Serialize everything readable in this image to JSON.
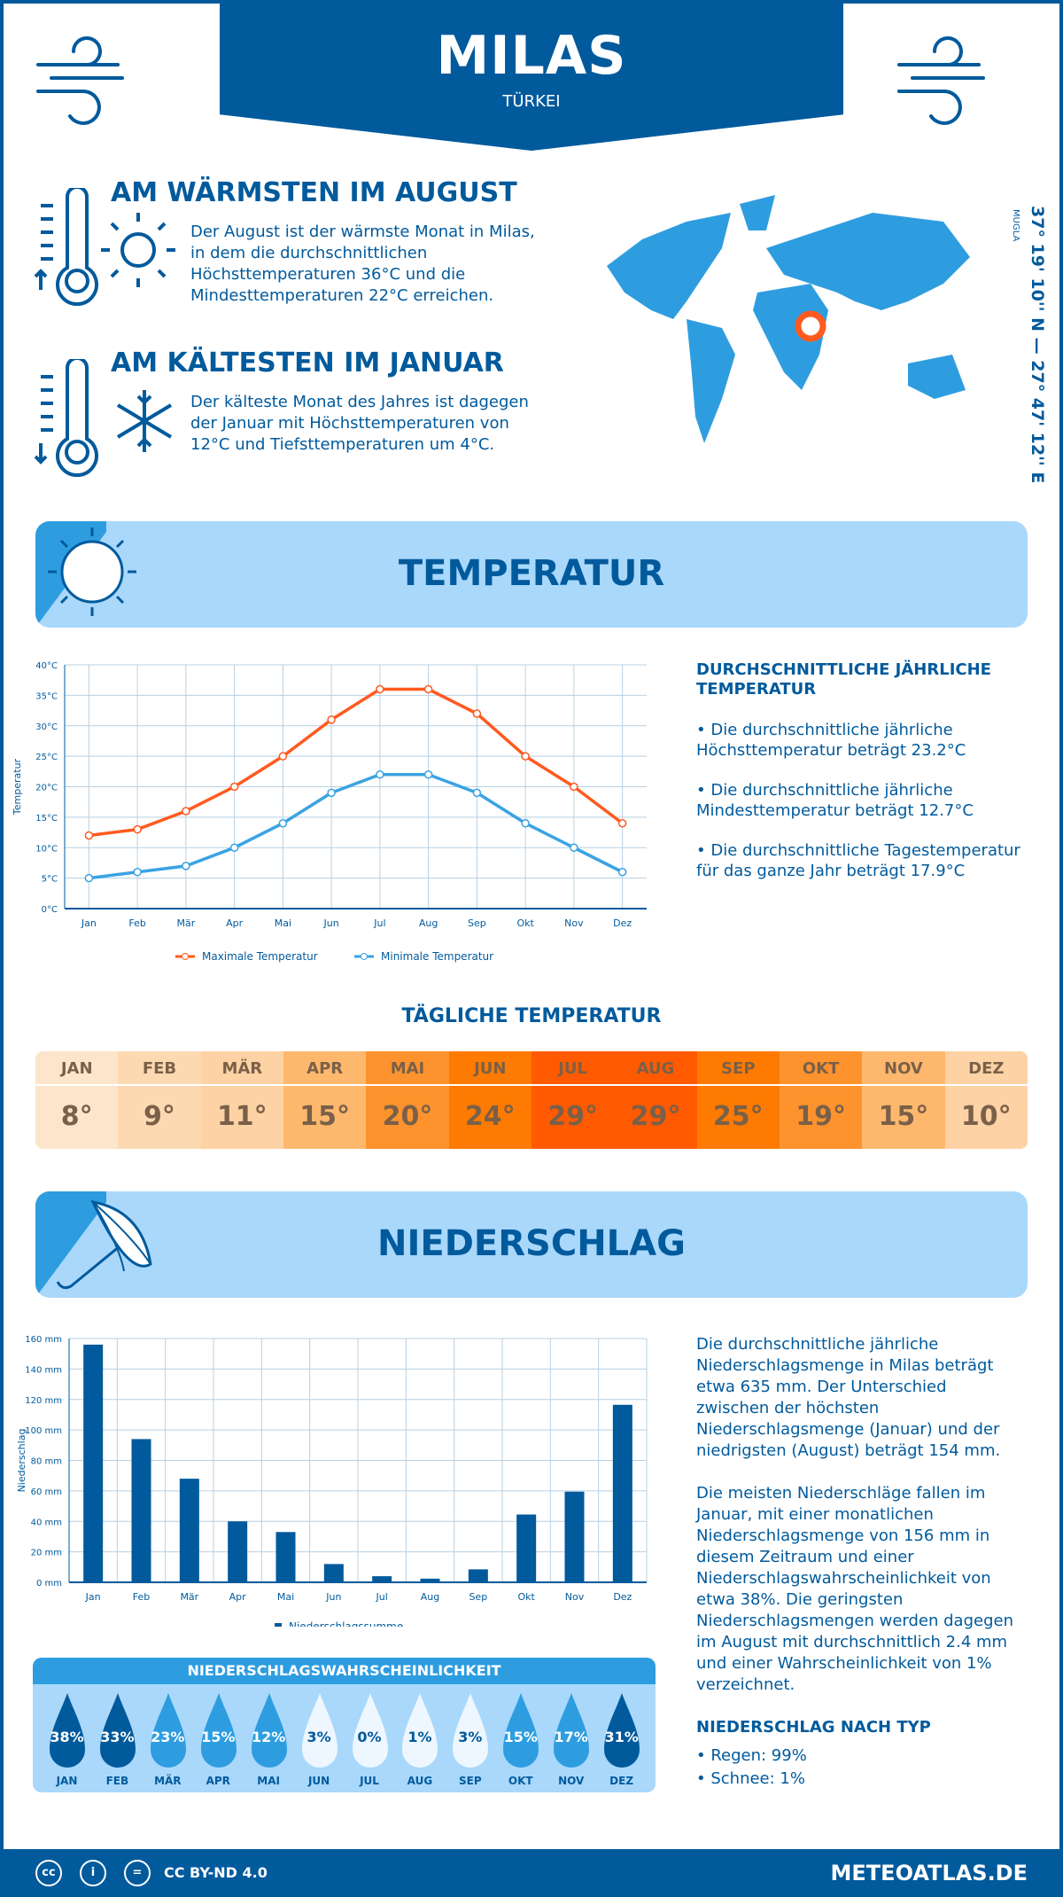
{
  "header": {
    "city": "MILAS",
    "country": "TÜRKEI",
    "region": "MUGLA",
    "coordinates": "37° 19' 10'' N — 27° 47' 12'' E"
  },
  "warmest": {
    "title": "AM WÄRMSTEN IM AUGUST",
    "text": "Der August ist der wärmste Monat in Milas, in dem die durchschnittlichen Höchsttemperaturen 36°C und die Mindesttemperaturen 22°C erreichen."
  },
  "coldest": {
    "title": "AM KÄLTESTEN IM JANUAR",
    "text": "Der kälteste Monat des Jahres ist dagegen der Januar mit Höchsttemperaturen von 12°C und Tiefsttemperaturen um 4°C."
  },
  "temperature": {
    "section_title": "TEMPERATUR",
    "summary_title": "DURCHSCHNITTLICHE JÄHRLICHE TEMPERATUR",
    "bullets": [
      "• Die durchschnittliche jährliche Höchsttemperatur beträgt 23.2°C",
      "• Die durchschnittliche jährliche Mindesttemperatur beträgt 12.7°C",
      "• Die durchschnittliche Tagestemperatur für das ganze Jahr beträgt 17.9°C"
    ],
    "daily_title": "TÄGLICHE TEMPERATUR",
    "daily": [
      {
        "m": "JAN",
        "v": "8°",
        "c": "#fde5cc"
      },
      {
        "m": "FEB",
        "v": "9°",
        "c": "#fdd9b2"
      },
      {
        "m": "MÄR",
        "v": "11°",
        "c": "#fdd2a4"
      },
      {
        "m": "APR",
        "v": "15°",
        "c": "#feb86e"
      },
      {
        "m": "MAI",
        "v": "20°",
        "c": "#fe932d"
      },
      {
        "m": "JUN",
        "v": "24°",
        "c": "#ff7a00"
      },
      {
        "m": "JUL",
        "v": "29°",
        "c": "#ff5a00"
      },
      {
        "m": "AUG",
        "v": "29°",
        "c": "#ff5a00"
      },
      {
        "m": "SEP",
        "v": "25°",
        "c": "#ff7a00"
      },
      {
        "m": "OKT",
        "v": "19°",
        "c": "#fe932d"
      },
      {
        "m": "NOV",
        "v": "15°",
        "c": "#feb86e"
      },
      {
        "m": "DEZ",
        "v": "10°",
        "c": "#fdd2a4"
      }
    ]
  },
  "precipitation": {
    "section_title": "NIEDERSCHLAG",
    "text1": "Die durchschnittliche jährliche Niederschlagsmenge in Milas beträgt etwa 635 mm. Der Unterschied zwischen der höchsten Niederschlagsmenge (Januar) und der niedrigsten (August) beträgt 154 mm.",
    "text2": "Die meisten Niederschläge fallen im Januar, mit einer monatlichen Niederschlagsmenge von 156 mm in diesem Zeitraum und einer Niederschlagswahrscheinlichkeit von etwa 38%. Die geringsten Niederschlagsmengen werden dagegen im August mit durchschnittlich 2.4 mm und einer Wahrscheinlichkeit von 1% verzeichnet.",
    "type_title": "NIEDERSCHLAG NACH TYP",
    "types": [
      "• Regen: 99%",
      "• Schnee: 1%"
    ],
    "prob_title": "NIEDERSCHLAGSWAHRSCHEINLICHKEIT",
    "prob": [
      {
        "m": "JAN",
        "v": "38%",
        "c": "#005a9c",
        "t": "#fff"
      },
      {
        "m": "FEB",
        "v": "33%",
        "c": "#005a9c",
        "t": "#fff"
      },
      {
        "m": "MÄR",
        "v": "23%",
        "c": "#2e9de0",
        "t": "#fff"
      },
      {
        "m": "APR",
        "v": "15%",
        "c": "#2e9de0",
        "t": "#fff"
      },
      {
        "m": "MAI",
        "v": "12%",
        "c": "#2e9de0",
        "t": "#fff"
      },
      {
        "m": "JUN",
        "v": "3%",
        "c": "#eef7ff",
        "t": "#005a9c"
      },
      {
        "m": "JUL",
        "v": "0%",
        "c": "#eef7ff",
        "t": "#005a9c"
      },
      {
        "m": "AUG",
        "v": "1%",
        "c": "#eef7ff",
        "t": "#005a9c"
      },
      {
        "m": "SEP",
        "v": "3%",
        "c": "#eef7ff",
        "t": "#005a9c"
      },
      {
        "m": "OKT",
        "v": "15%",
        "c": "#2e9de0",
        "t": "#fff"
      },
      {
        "m": "NOV",
        "v": "17%",
        "c": "#2e9de0",
        "t": "#fff"
      },
      {
        "m": "DEZ",
        "v": "31%",
        "c": "#005a9c",
        "t": "#fff"
      }
    ]
  },
  "chart_data": [
    {
      "type": "line",
      "categories": [
        "Jan",
        "Feb",
        "Mär",
        "Apr",
        "Mai",
        "Jun",
        "Jul",
        "Aug",
        "Sep",
        "Okt",
        "Nov",
        "Dez"
      ],
      "ylabel": "Temperatur",
      "ylim": [
        0,
        40
      ],
      "yticks": [
        "0°C",
        "5°C",
        "10°C",
        "15°C",
        "20°C",
        "25°C",
        "30°C",
        "35°C",
        "40°C"
      ],
      "grid": true,
      "legend": "bottom",
      "series": [
        {
          "name": "Maximale Temperatur",
          "color": "#ff5a1f",
          "values": [
            12,
            13,
            16,
            20,
            25,
            31,
            36,
            36,
            32,
            25,
            20,
            14
          ]
        },
        {
          "name": "Minimale Temperatur",
          "color": "#3aa3e3",
          "values": [
            5,
            6,
            7,
            10,
            14,
            19,
            22,
            22,
            19,
            14,
            10,
            6
          ]
        }
      ]
    },
    {
      "type": "bar",
      "categories": [
        "Jan",
        "Feb",
        "Mär",
        "Apr",
        "Mai",
        "Jun",
        "Jul",
        "Aug",
        "Sep",
        "Okt",
        "Nov",
        "Dez"
      ],
      "ylabel": "Niederschlag",
      "ylim": [
        0,
        160
      ],
      "yticks": [
        "0 mm",
        "20 mm",
        "40 mm",
        "60 mm",
        "80 mm",
        "100 mm",
        "120 mm",
        "140 mm",
        "160 mm"
      ],
      "grid": true,
      "legend": "bottom",
      "series": [
        {
          "name": "Niederschlagssumme",
          "color": "#005a9c",
          "values": [
            156,
            94,
            68,
            40,
            33,
            12,
            4,
            2.4,
            8.5,
            44.5,
            59.5,
            116.5
          ]
        }
      ]
    }
  ],
  "footer": {
    "license": "CC BY-ND 4.0",
    "site": "METEOATLAS.DE",
    "icons": [
      "cc-icon",
      "by-icon",
      "nd-icon"
    ]
  }
}
